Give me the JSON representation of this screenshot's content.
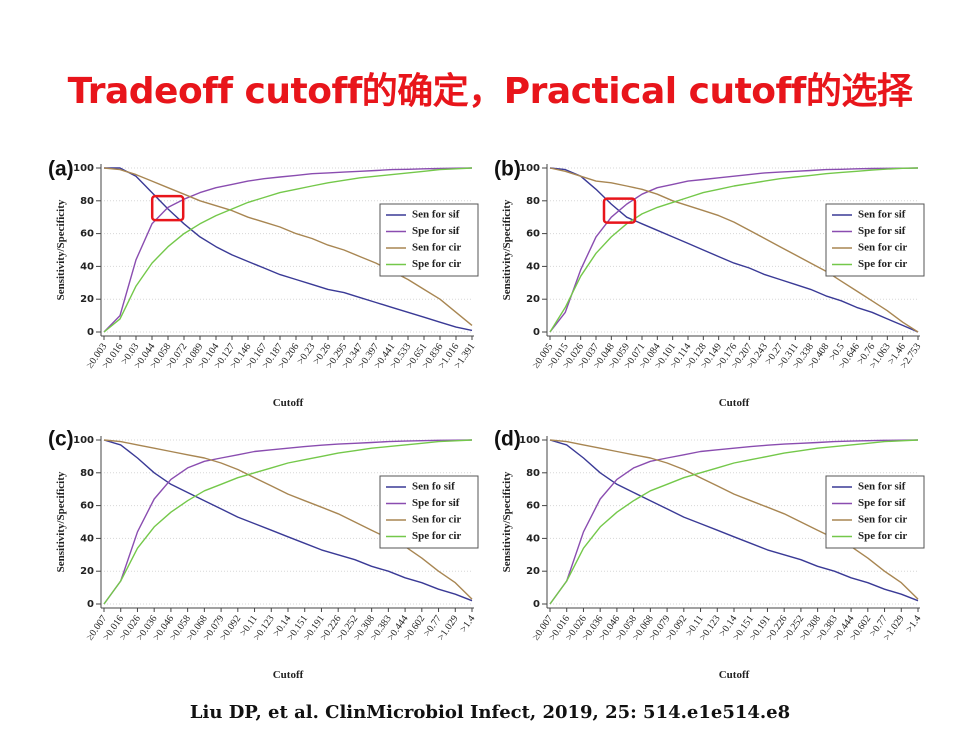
{
  "slide": {
    "title": "Tradeoff cutoff的确定，Practical cutoff的选择",
    "citation": "Liu DP, et al.  ClinMicrobiol Infect, 2019, 25: 514.e1e514.e8",
    "highlight_color": "#e8151b"
  },
  "chart_data": [
    {
      "panel": "(a)",
      "type": "line",
      "xlabel": "Cutoff",
      "ylabel": "Sensitivity/Specificity",
      "ylim": [
        0,
        100
      ],
      "yticks": [
        0,
        20,
        40,
        60,
        80,
        100
      ],
      "x_tick_labels": [
        "≥0.003",
        ">0.016",
        ">0.03",
        ">0.044",
        ">0.058",
        ">0.072",
        ">0.089",
        ">0.104",
        ">0.127",
        ">0.146",
        ">0.167",
        ">0.187",
        ">0.206",
        ">0.23",
        ">0.26",
        ">0.295",
        ">0.347",
        ">0.397",
        ">0.441",
        ">0.533",
        ">0.651",
        ">0.836",
        ">1.016",
        ">1.391"
      ],
      "legend_position": "center-right",
      "series": [
        {
          "name": "Sen for sif",
          "color": "#3a3a96",
          "values": [
            100,
            100,
            95,
            85,
            75,
            66,
            58,
            52,
            47,
            43,
            39,
            35,
            32,
            29,
            26,
            24,
            21,
            18,
            15,
            12,
            9,
            6,
            3,
            1
          ]
        },
        {
          "name": "Spe for sif",
          "color": "#8a4db0",
          "values": [
            0,
            10,
            44,
            66,
            76,
            81,
            85,
            88,
            90,
            92,
            93.5,
            94.5,
            95.5,
            96.5,
            97,
            97.5,
            98,
            98.5,
            99,
            99.2,
            99.5,
            99.7,
            99.9,
            100
          ]
        },
        {
          "name": "Sen for cir",
          "color": "#a88652",
          "values": [
            100,
            99,
            96,
            92,
            88,
            84,
            80,
            77,
            74,
            70,
            67,
            64,
            60,
            57,
            53,
            50,
            46,
            42,
            37,
            32,
            26,
            20,
            12,
            4
          ]
        },
        {
          "name": "Spe for cir",
          "color": "#74c84a",
          "values": [
            0,
            8,
            28,
            42,
            52,
            60,
            66,
            71,
            75,
            79,
            82,
            85,
            87,
            89,
            91,
            92.5,
            94,
            95,
            96,
            97,
            98,
            99,
            99.5,
            100
          ]
        }
      ],
      "annotation": "red-box"
    },
    {
      "panel": "(b)",
      "type": "line",
      "xlabel": "Cutoff",
      "ylabel": "Sensitivity/Specificity",
      "ylim": [
        0,
        100
      ],
      "yticks": [
        0,
        20,
        40,
        60,
        80,
        100
      ],
      "x_tick_labels": [
        "≥0.005",
        ">0.015",
        ">0.026",
        ">0.037",
        ">0.048",
        ">0.059",
        ">0.071",
        ">0.084",
        ">0.101",
        ">0.114",
        ">0.128",
        ">0.149",
        ">0.176",
        ">0.207",
        ">0.243",
        ">0.27",
        ">0.311",
        ">0.338",
        ">0.408",
        ">0.5",
        ">0.646",
        ">0.76",
        ">1.063",
        ">1.46",
        ">2.753"
      ],
      "legend_position": "center-right",
      "series": [
        {
          "name": "Sen for sif",
          "color": "#3a3a96",
          "values": [
            100,
            99,
            95,
            87,
            78,
            70,
            66,
            62,
            58,
            54,
            50,
            46,
            42,
            39,
            35,
            32,
            29,
            26,
            22,
            19,
            15,
            12,
            8,
            4,
            0
          ]
        },
        {
          "name": "Spe for sif",
          "color": "#8a4db0",
          "values": [
            0,
            12,
            38,
            58,
            70,
            78,
            84,
            88,
            90,
            92,
            93,
            94,
            95,
            96,
            97,
            97.5,
            98,
            98.5,
            99,
            99.2,
            99.5,
            99.7,
            99.8,
            99.9,
            100
          ]
        },
        {
          "name": "Sen for cir",
          "color": "#a88652",
          "values": [
            100,
            98,
            95,
            92,
            91,
            89,
            87,
            84,
            80,
            77,
            74,
            71,
            67,
            62,
            57,
            52,
            47,
            42,
            37,
            31,
            25,
            19,
            13,
            6,
            0
          ]
        },
        {
          "name": "Spe for cir",
          "color": "#74c84a",
          "values": [
            0,
            15,
            34,
            48,
            58,
            66,
            72,
            76,
            79,
            82,
            85,
            87,
            89,
            90.5,
            92,
            93.5,
            94.5,
            95.5,
            96.5,
            97.3,
            98,
            98.7,
            99.3,
            99.8,
            100
          ]
        }
      ],
      "annotation": "red-box"
    },
    {
      "panel": "(c)",
      "type": "line",
      "xlabel": "Cutoff",
      "ylabel": "Sensitivity/Specificity",
      "ylim": [
        0,
        100
      ],
      "yticks": [
        0,
        20,
        40,
        60,
        80,
        100
      ],
      "x_tick_labels": [
        "≥0.007",
        ">0.016",
        ">0.026",
        ">0.036",
        ">0.046",
        ">0.058",
        ">0.068",
        ">0.079",
        ">0.092",
        ">0.11",
        ">0.123",
        ">0.14",
        ">0.151",
        ">0.191",
        ">0.226",
        ">0.252",
        ">0.308",
        ">0.383",
        ">0.444",
        ">0.602",
        ">0.77",
        ">1.029",
        ">1.4"
      ],
      "legend_position": "center-right",
      "series": [
        {
          "name": "Sen fo sif",
          "color": "#3a3a96",
          "values": [
            100,
            97,
            89,
            80,
            73,
            68,
            63,
            58,
            53,
            49,
            45,
            41,
            37,
            33,
            30,
            27,
            23,
            20,
            16,
            13,
            9,
            6,
            2
          ]
        },
        {
          "name": "Spe for sif",
          "color": "#8a4db0",
          "values": [
            0,
            14,
            44,
            64,
            76,
            83,
            87,
            89,
            91,
            93,
            94,
            95,
            96,
            96.8,
            97.5,
            98,
            98.5,
            99,
            99.3,
            99.6,
            99.8,
            99.9,
            100
          ]
        },
        {
          "name": "Sen for cir",
          "color": "#a88652",
          "values": [
            100,
            99,
            97,
            95,
            93,
            91,
            89,
            86,
            82,
            77,
            72,
            67,
            63,
            59,
            55,
            50,
            45,
            40,
            35,
            28,
            20,
            13,
            3
          ]
        },
        {
          "name": "Spe for cir",
          "color": "#74c84a",
          "values": [
            0,
            14,
            34,
            47,
            56,
            63,
            69,
            73,
            77,
            80,
            83,
            86,
            88,
            90,
            92,
            93.5,
            95,
            96,
            97,
            98,
            99,
            99.5,
            100
          ]
        }
      ]
    },
    {
      "panel": "(d)",
      "type": "line",
      "xlabel": "Cutoff",
      "ylabel": "Sensitivity/Specificity",
      "ylim": [
        0,
        100
      ],
      "yticks": [
        0,
        20,
        40,
        60,
        80,
        100
      ],
      "x_tick_labels": [
        "≥0.007",
        ">0.016",
        ">0.026",
        ">0.036",
        ">0.046",
        ">0.058",
        ">0.068",
        ">0.079",
        ">0.092",
        ">0.11",
        ">0.123",
        ">0.14",
        ">0.151",
        ">0.191",
        ">0.226",
        ">0.252",
        ">0.308",
        ">0.383",
        ">0.444",
        ">0.602",
        ">0.77",
        ">1.029",
        ">1.4"
      ],
      "legend_position": "center-right",
      "series": [
        {
          "name": "Sen for sif",
          "color": "#3a3a96",
          "values": [
            100,
            97,
            89,
            80,
            73,
            68,
            63,
            58,
            53,
            49,
            45,
            41,
            37,
            33,
            30,
            27,
            23,
            20,
            16,
            13,
            9,
            6,
            2
          ]
        },
        {
          "name": "Spe for sif",
          "color": "#8a4db0",
          "values": [
            0,
            14,
            44,
            64,
            76,
            83,
            87,
            89,
            91,
            93,
            94,
            95,
            96,
            96.8,
            97.5,
            98,
            98.5,
            99,
            99.3,
            99.6,
            99.8,
            99.9,
            100
          ]
        },
        {
          "name": "Sen for cir",
          "color": "#a88652",
          "values": [
            100,
            99,
            97,
            95,
            93,
            91,
            89,
            86,
            82,
            77,
            72,
            67,
            63,
            59,
            55,
            50,
            45,
            40,
            35,
            28,
            20,
            13,
            3
          ]
        },
        {
          "name": "Spe for cir",
          "color": "#74c84a",
          "values": [
            0,
            14,
            34,
            47,
            56,
            63,
            69,
            73,
            77,
            80,
            83,
            86,
            88,
            90,
            92,
            93.5,
            95,
            96,
            97,
            98,
            99,
            99.5,
            100
          ]
        }
      ]
    }
  ]
}
